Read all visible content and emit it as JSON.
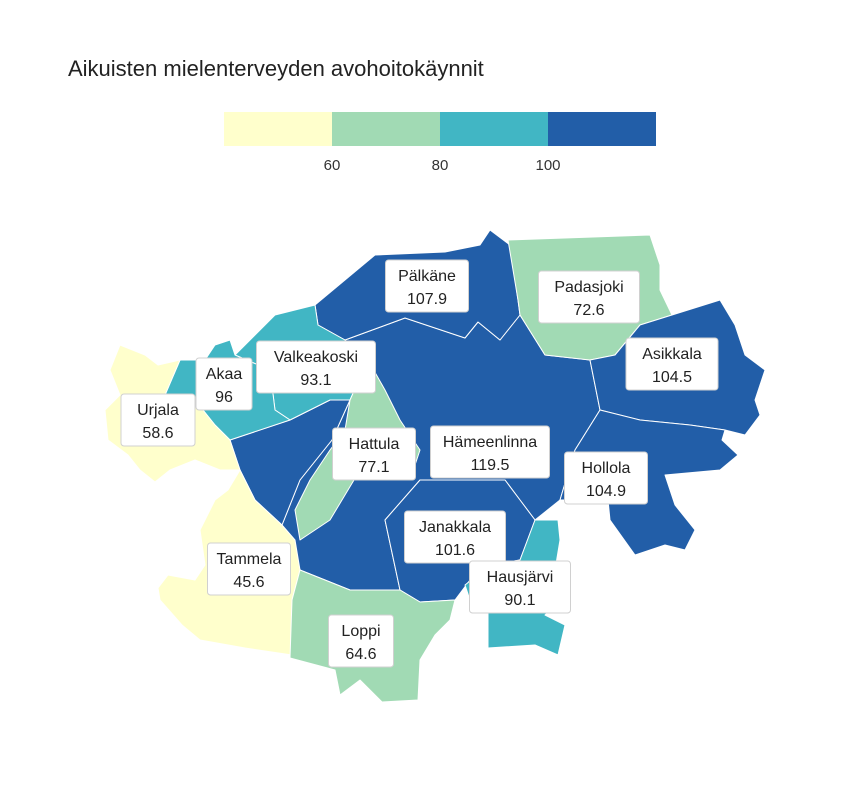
{
  "title": "Aikuisten mielenterveyden avohoitokäynnit",
  "legend": {
    "bins": [
      {
        "color": "#ffffcc",
        "max": 60
      },
      {
        "color": "#a1dab4",
        "min": 60,
        "max": 80
      },
      {
        "color": "#41b6c4",
        "min": 80,
        "max": 100
      },
      {
        "color": "#225ea8",
        "min": 100
      }
    ],
    "ticks": [
      "60",
      "80",
      "100"
    ]
  },
  "municipalities": [
    {
      "name": "Pälkäne",
      "value": "107.9",
      "color": "#225ea8"
    },
    {
      "name": "Padasjoki",
      "value": "72.6",
      "color": "#a1dab4"
    },
    {
      "name": "Asikkala",
      "value": "104.5",
      "color": "#225ea8"
    },
    {
      "name": "Valkeakoski",
      "value": "93.1",
      "color": "#41b6c4"
    },
    {
      "name": "Akaa",
      "value": "96",
      "color": "#41b6c4"
    },
    {
      "name": "Urjala",
      "value": "58.6",
      "color": "#ffffcc"
    },
    {
      "name": "Hattula",
      "value": "77.1",
      "color": "#a1dab4"
    },
    {
      "name": "Hämeenlinna",
      "value": "119.5",
      "color": "#225ea8"
    },
    {
      "name": "Hollola",
      "value": "104.9",
      "color": "#225ea8"
    },
    {
      "name": "Janakkala",
      "value": "101.6",
      "color": "#225ea8"
    },
    {
      "name": "Tammela",
      "value": "45.6",
      "color": "#ffffcc"
    },
    {
      "name": "Hausjärvi",
      "value": "90.1",
      "color": "#41b6c4"
    },
    {
      "name": "Loppi",
      "value": "64.6",
      "color": "#a1dab4"
    }
  ]
}
